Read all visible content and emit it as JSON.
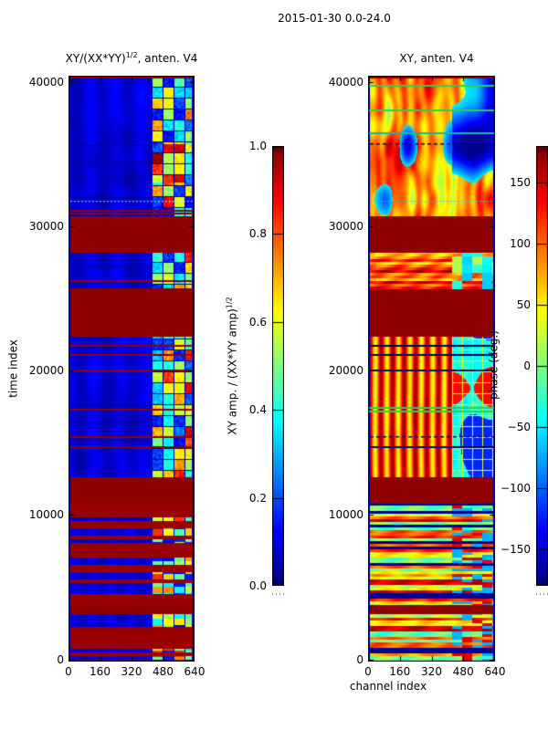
{
  "figure": {
    "title": "2015-01-30 0.0-24.0",
    "background": "#ffffff",
    "text_color": "#000000"
  },
  "chart_data": [
    {
      "type": "heatmap",
      "id": "amplitude",
      "title": {
        "pre": "XY/(XX*YY)",
        "sup": "1/2",
        "post": ", anten. V4"
      },
      "xlabel": "",
      "ylabel": "time index",
      "xlim": [
        0,
        640
      ],
      "ylim": [
        0,
        40420
      ],
      "x_ticks": [
        {
          "v": 0,
          "label": "0"
        },
        {
          "v": 160,
          "label": "160"
        },
        {
          "v": 320,
          "label": "320"
        },
        {
          "v": 480,
          "label": "480"
        },
        {
          "v": 640,
          "label": "640"
        }
      ],
      "y_ticks": [
        {
          "v": 40000,
          "label": "40000"
        },
        {
          "v": 30000,
          "label": "30000"
        },
        {
          "v": 20000,
          "label": "20000"
        },
        {
          "v": 10000,
          "label": "10000"
        },
        {
          "v": 0,
          "label": "0"
        }
      ],
      "colormap": "jet",
      "checker_channels": [
        420,
        625
      ],
      "colorbar": {
        "label": {
          "pre": "XY amp. / (XX*YY amp)",
          "sup": "1/2"
        },
        "vmin": 0.0,
        "vmax": 1.0,
        "ticks": [
          {
            "v": 1.0,
            "label": "1.0"
          },
          {
            "v": 0.8,
            "label": "0.8"
          },
          {
            "v": 0.6,
            "label": "0.6"
          },
          {
            "v": 0.4,
            "label": "0.4"
          },
          {
            "v": 0.2,
            "label": "0.2"
          },
          {
            "v": 0.0,
            "label": "0.0"
          }
        ]
      },
      "bands": [
        {
          "t": [
            31150,
            40420
          ],
          "kind": "quiet",
          "hot": [
            33000,
            35700
          ]
        },
        {
          "t": [
            30690,
            31150
          ],
          "kind": "quiet"
        },
        {
          "t": [
            28160,
            30690
          ],
          "kind": "flag"
        },
        {
          "t": [
            25640,
            28160
          ],
          "kind": "quiet"
        },
        {
          "t": [
            22350,
            25640
          ],
          "kind": "flag"
        },
        {
          "t": [
            12620,
            22350
          ],
          "kind": "quiet"
        },
        {
          "t": [
            10790,
            12620
          ],
          "kind": "flag"
        },
        {
          "t": [
            3770,
            10790
          ],
          "kind": "striped"
        },
        {
          "t": [
            3140,
            3770
          ],
          "kind": "flag"
        },
        {
          "t": [
            -150,
            3140
          ],
          "kind": "striped"
        }
      ],
      "lines": [
        {
          "t": 40380,
          "color": "#8b0000",
          "style": "solid"
        },
        {
          "t": 31760,
          "color": "#b8e0ff",
          "style": "dotted"
        },
        {
          "t": 31130,
          "color": "#8b0000",
          "style": "solid"
        },
        {
          "t": 30940,
          "color": "#8b0000",
          "style": "solid"
        },
        {
          "t": 26250,
          "color": "#8b0000",
          "style": "solid"
        },
        {
          "t": 25700,
          "color": "#8b0000",
          "style": "solid"
        },
        {
          "t": 21780,
          "color": "#8b0000",
          "style": "solid"
        },
        {
          "t": 21150,
          "color": "#8b0000",
          "style": "solid"
        },
        {
          "t": 20070,
          "color": "#8b0000",
          "style": "solid"
        },
        {
          "t": 17360,
          "color": "#8b0000",
          "style": "solid"
        },
        {
          "t": 15460,
          "color": "#8b0000",
          "style": "solid"
        },
        {
          "t": 14770,
          "color": "#8b0000",
          "style": "solid"
        }
      ]
    },
    {
      "type": "heatmap",
      "id": "phase",
      "title": {
        "pre": "XY, anten. V4",
        "sup": "",
        "post": ""
      },
      "xlabel": "channel index",
      "ylabel": "",
      "xlim": [
        0,
        640
      ],
      "ylim": [
        0,
        40420
      ],
      "x_ticks": [
        {
          "v": 0,
          "label": "0"
        },
        {
          "v": 160,
          "label": "160"
        },
        {
          "v": 320,
          "label": "320"
        },
        {
          "v": 480,
          "label": "480"
        },
        {
          "v": 640,
          "label": "640"
        }
      ],
      "y_ticks": [
        {
          "v": 40000,
          "label": "40000"
        },
        {
          "v": 30000,
          "label": "30000"
        },
        {
          "v": 20000,
          "label": "20000"
        },
        {
          "v": 10000,
          "label": "10000"
        },
        {
          "v": 0,
          "label": "0"
        }
      ],
      "colormap": "jet",
      "checker_channels": [
        420,
        625
      ],
      "colorbar": {
        "label": {
          "pre": "phase (deg.)",
          "sup": ""
        },
        "vmin": -180,
        "vmax": 180,
        "ticks": [
          {
            "v": 150,
            "label": "150"
          },
          {
            "v": 100,
            "label": "100"
          },
          {
            "v": 50,
            "label": "50"
          },
          {
            "v": 0,
            "label": "0"
          },
          {
            "v": -50,
            "label": "−50"
          },
          {
            "v": -100,
            "label": "−100"
          },
          {
            "v": -150,
            "label": "−150"
          }
        ]
      },
      "bands": [
        {
          "t": [
            31150,
            40420
          ],
          "kind": "wavy"
        },
        {
          "t": [
            30690,
            31150
          ],
          "kind": "wavy"
        },
        {
          "t": [
            28160,
            30690
          ],
          "kind": "flag"
        },
        {
          "t": [
            25640,
            28160
          ],
          "kind": "rows"
        },
        {
          "t": [
            22350,
            25640
          ],
          "kind": "flag"
        },
        {
          "t": [
            12620,
            22350
          ],
          "kind": "vstripes"
        },
        {
          "t": [
            10790,
            12620
          ],
          "kind": "flag"
        },
        {
          "t": [
            3770,
            10790
          ],
          "kind": "hstripes"
        },
        {
          "t": [
            3140,
            3770
          ],
          "kind": "flag"
        },
        {
          "t": [
            -150,
            3140
          ],
          "kind": "hstripes"
        }
      ],
      "lines": [
        {
          "t": 40380,
          "color": "#8b0000",
          "style": "solid"
        },
        {
          "t": 39800,
          "color": "#33cc55",
          "style": "solid"
        },
        {
          "t": 38100,
          "color": "#33cc55",
          "style": "solid"
        },
        {
          "t": 36500,
          "color": "#11bbaa",
          "style": "solid"
        },
        {
          "t": 35740,
          "color": "#000080",
          "style": "dashed"
        },
        {
          "t": 31760,
          "color": "#22ccee",
          "style": "dotted"
        },
        {
          "t": 21780,
          "color": "#000060",
          "style": "solid"
        },
        {
          "t": 21150,
          "color": "#000060",
          "style": "solid"
        },
        {
          "t": 20070,
          "color": "#000060",
          "style": "solid"
        },
        {
          "t": 17500,
          "color": "#33cc55",
          "style": "solid"
        },
        {
          "t": 17250,
          "color": "#33cc55",
          "style": "solid"
        },
        {
          "t": 15460,
          "color": "#000080",
          "style": "dashed"
        },
        {
          "t": 14770,
          "color": "#000060",
          "style": "solid"
        }
      ]
    }
  ],
  "colors": {
    "flag_amp": "#8f0000",
    "flag_phase": "#000080",
    "axis": "#000000"
  }
}
